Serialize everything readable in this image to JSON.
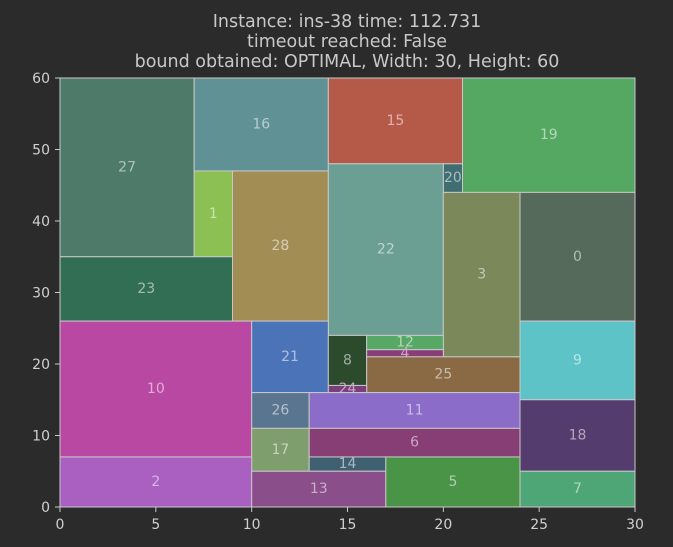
{
  "chart_data": {
    "type": "rectangle-packing",
    "title_lines": [
      "Instance: ins-38 time: 112.731",
      "timeout reached: False",
      "bound obtained: OPTIMAL, Width: 30, Height: 60"
    ],
    "xlim": [
      0,
      30
    ],
    "ylim": [
      0,
      60
    ],
    "xticks": [
      0,
      5,
      10,
      15,
      20,
      25,
      30
    ],
    "yticks": [
      0,
      10,
      20,
      30,
      40,
      50,
      60
    ],
    "grid": false,
    "rectangles": [
      {
        "label": "27",
        "x": 0,
        "y": 35,
        "w": 7,
        "h": 25,
        "color": "#4e7a6a"
      },
      {
        "label": "16",
        "x": 7,
        "y": 47,
        "w": 7,
        "h": 13,
        "color": "#5f9195"
      },
      {
        "label": "15",
        "x": 14,
        "y": 48,
        "w": 7,
        "h": 12,
        "color": "#b55a48"
      },
      {
        "label": "19",
        "x": 21,
        "y": 44,
        "w": 9,
        "h": 16,
        "color": "#54a862"
      },
      {
        "label": "1",
        "x": 7,
        "y": 35,
        "w": 2,
        "h": 12,
        "color": "#8cc052"
      },
      {
        "label": "28",
        "x": 9,
        "y": 26,
        "w": 5,
        "h": 21,
        "color": "#a28e55"
      },
      {
        "label": "20",
        "x": 20,
        "y": 44,
        "w": 1,
        "h": 4,
        "color": "#3f6d71"
      },
      {
        "label": "22",
        "x": 14,
        "y": 24,
        "w": 6,
        "h": 24,
        "color": "#6b9f93"
      },
      {
        "label": "3",
        "x": 20,
        "y": 21,
        "w": 4,
        "h": 23,
        "color": "#7a885a"
      },
      {
        "label": "0",
        "x": 24,
        "y": 26,
        "w": 6,
        "h": 18,
        "color": "#566a5c"
      },
      {
        "label": "23",
        "x": 0,
        "y": 26,
        "w": 9,
        "h": 9,
        "color": "#326e54"
      },
      {
        "label": "10",
        "x": 0,
        "y": 7,
        "w": 10,
        "h": 19,
        "color": "#b848a2"
      },
      {
        "label": "21",
        "x": 10,
        "y": 16,
        "w": 4,
        "h": 10,
        "color": "#4b73b8"
      },
      {
        "label": "8",
        "x": 14,
        "y": 17,
        "w": 2,
        "h": 7,
        "color": "#2c4a2c"
      },
      {
        "label": "12",
        "x": 16,
        "y": 22,
        "w": 4,
        "h": 2,
        "color": "#56a864"
      },
      {
        "label": "4",
        "x": 16,
        "y": 21,
        "w": 4,
        "h": 1,
        "color": "#8a3e78"
      },
      {
        "label": "25",
        "x": 16,
        "y": 16,
        "w": 8,
        "h": 5,
        "color": "#8a6a44"
      },
      {
        "label": "24",
        "x": 14,
        "y": 16,
        "w": 2,
        "h": 1,
        "color": "#7a3f7a"
      },
      {
        "label": "9",
        "x": 24,
        "y": 15,
        "w": 6,
        "h": 11,
        "color": "#5ec3c6"
      },
      {
        "label": "26",
        "x": 10,
        "y": 11,
        "w": 3,
        "h": 5,
        "color": "#5a7590"
      },
      {
        "label": "11",
        "x": 13,
        "y": 11,
        "w": 11,
        "h": 5,
        "color": "#8b6cc8"
      },
      {
        "label": "18",
        "x": 24,
        "y": 5,
        "w": 6,
        "h": 10,
        "color": "#553c6e"
      },
      {
        "label": "17",
        "x": 10,
        "y": 5,
        "w": 3,
        "h": 6,
        "color": "#7e9f6d"
      },
      {
        "label": "6",
        "x": 13,
        "y": 7,
        "w": 11,
        "h": 4,
        "color": "#863e74"
      },
      {
        "label": "14",
        "x": 13,
        "y": 5,
        "w": 4,
        "h": 2,
        "color": "#3f6070"
      },
      {
        "label": "2",
        "x": 0,
        "y": 0,
        "w": 10,
        "h": 7,
        "color": "#a960c0"
      },
      {
        "label": "13",
        "x": 10,
        "y": 0,
        "w": 7,
        "h": 5,
        "color": "#8a4e8a"
      },
      {
        "label": "5",
        "x": 17,
        "y": 0,
        "w": 7,
        "h": 7,
        "color": "#4a9448"
      },
      {
        "label": "7",
        "x": 24,
        "y": 0,
        "w": 6,
        "h": 5,
        "color": "#4ea676"
      }
    ]
  }
}
